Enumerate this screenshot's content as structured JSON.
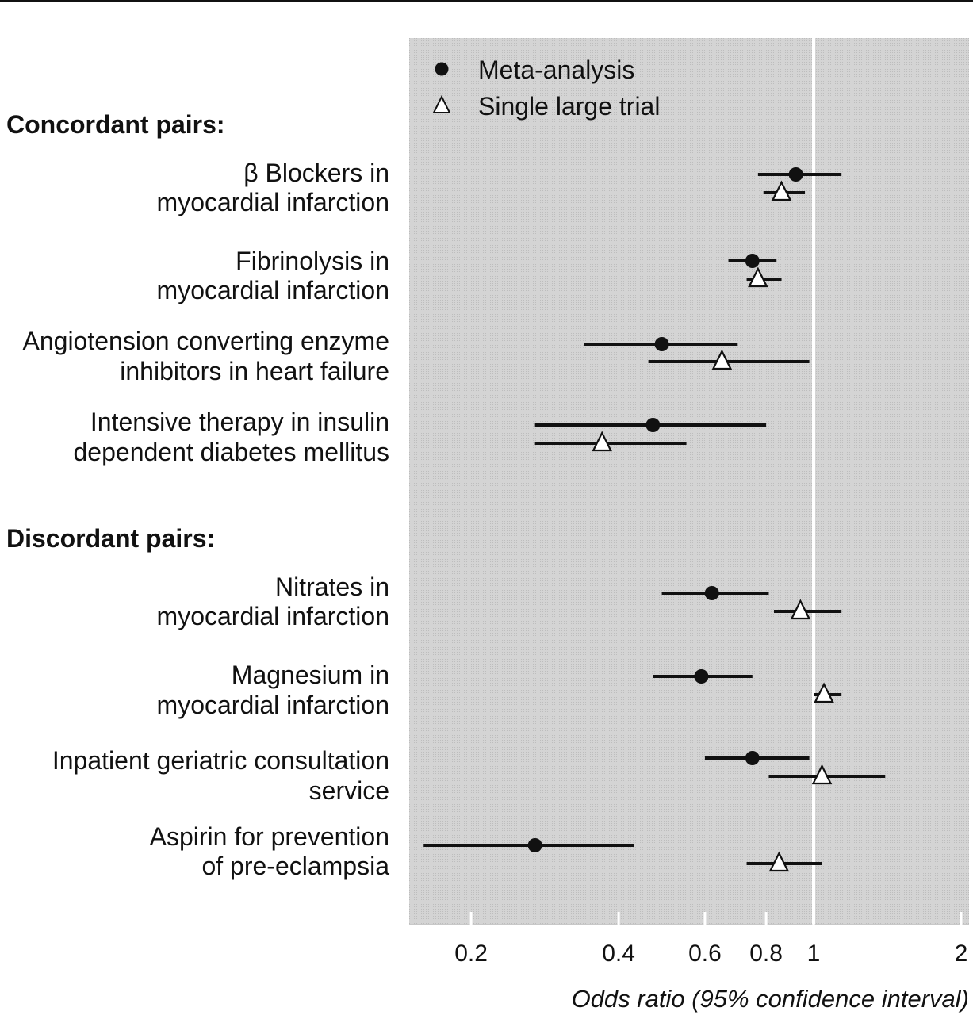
{
  "chart_data": {
    "type": "forest",
    "xlabel": "Odds ratio (95% confidence interval)",
    "x_scale": "log",
    "xlim": [
      0.16,
      2.0
    ],
    "reference_line": 1,
    "x_ticks": [
      {
        "value": 0.2,
        "label": "0.2"
      },
      {
        "value": 0.4,
        "label": "0.4"
      },
      {
        "value": 0.6,
        "label": "0.6"
      },
      {
        "value": 0.8,
        "label": "0.8"
      },
      {
        "value": 1,
        "label": "1"
      },
      {
        "value": 2,
        "label": "2"
      }
    ],
    "legend": {
      "placement": "top-left",
      "items": [
        {
          "name": "Meta-analysis",
          "marker": "filled-circle"
        },
        {
          "name": "Single large trial",
          "marker": "open-triangle"
        }
      ]
    },
    "groups": [
      {
        "label": "Concordant pairs:",
        "items": [
          {
            "label": [
              "β Blockers in",
              "myocardial infarction"
            ],
            "meta": {
              "or": 0.92,
              "lo": 0.77,
              "hi": 1.14
            },
            "trial": {
              "or": 0.86,
              "lo": 0.79,
              "hi": 0.96
            }
          },
          {
            "label": [
              "Fibrinolysis in",
              "myocardial infarction"
            ],
            "meta": {
              "or": 0.75,
              "lo": 0.67,
              "hi": 0.84
            },
            "trial": {
              "or": 0.77,
              "lo": 0.73,
              "hi": 0.86
            }
          },
          {
            "label": [
              "Angiotension converting enzyme",
              "inhibitors in heart failure"
            ],
            "meta": {
              "or": 0.49,
              "lo": 0.34,
              "hi": 0.7
            },
            "trial": {
              "or": 0.65,
              "lo": 0.46,
              "hi": 0.98
            }
          },
          {
            "label": [
              "Intensive therapy in insulin",
              "dependent diabetes mellitus"
            ],
            "meta": {
              "or": 0.47,
              "lo": 0.27,
              "hi": 0.8
            },
            "trial": {
              "or": 0.37,
              "lo": 0.27,
              "hi": 0.55
            }
          }
        ]
      },
      {
        "label": "Discordant pairs:",
        "items": [
          {
            "label": [
              "Nitrates in",
              "myocardial infarction"
            ],
            "meta": {
              "or": 0.62,
              "lo": 0.49,
              "hi": 0.81
            },
            "trial": {
              "or": 0.94,
              "lo": 0.83,
              "hi": 1.14
            }
          },
          {
            "label": [
              "Magnesium in",
              "myocardial infarction"
            ],
            "meta": {
              "or": 0.59,
              "lo": 0.47,
              "hi": 0.75
            },
            "trial": {
              "or": 1.05,
              "lo": 1.0,
              "hi": 1.14
            }
          },
          {
            "label": [
              "Inpatient geriatric consultation",
              "service"
            ],
            "meta": {
              "or": 0.75,
              "lo": 0.6,
              "hi": 0.98
            },
            "trial": {
              "or": 1.04,
              "lo": 0.81,
              "hi": 1.4
            }
          },
          {
            "label": [
              "Aspirin for prevention",
              "of pre-eclampsia"
            ],
            "meta": {
              "or": 0.27,
              "lo": 0.16,
              "hi": 0.43
            },
            "trial": {
              "or": 0.85,
              "lo": 0.73,
              "hi": 1.04
            }
          }
        ]
      }
    ]
  }
}
